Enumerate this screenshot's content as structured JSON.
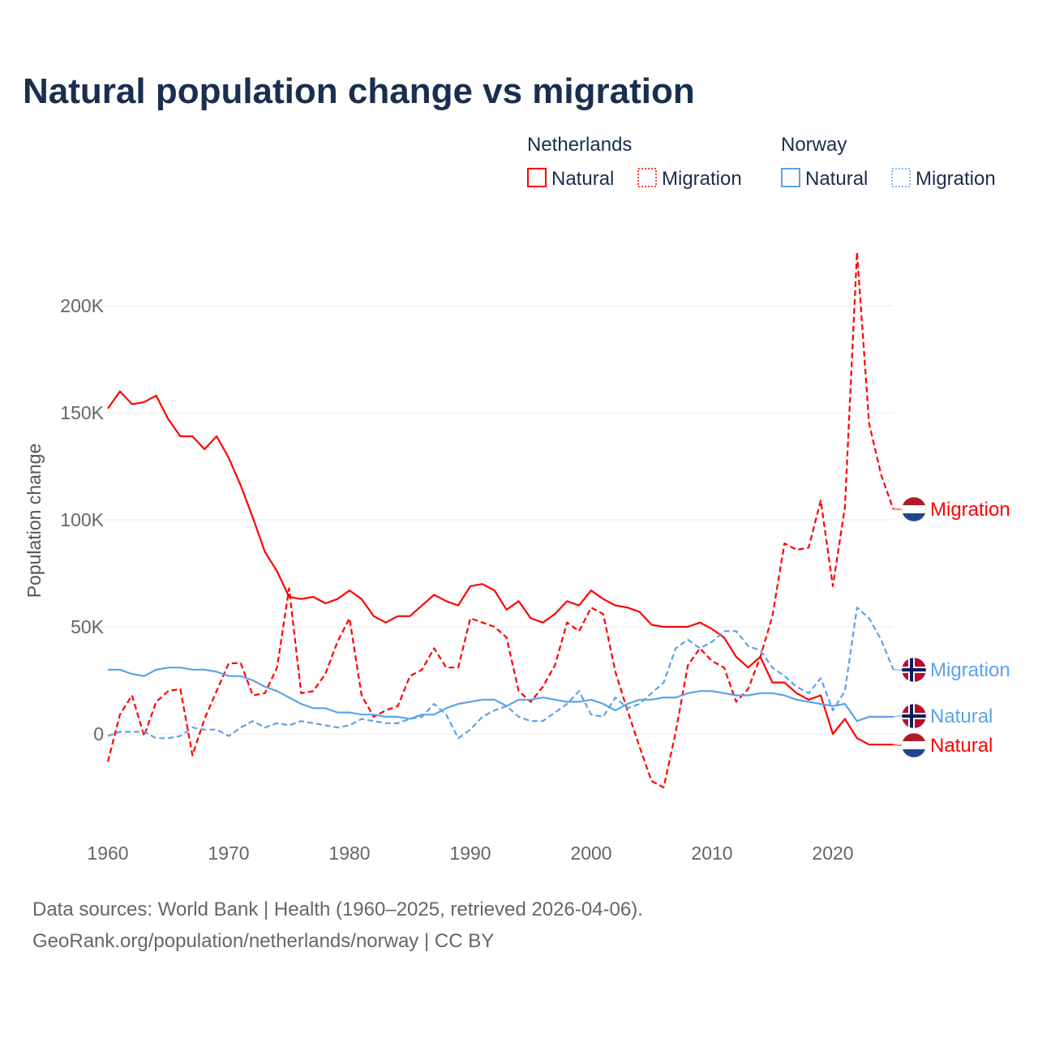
{
  "chart_data": {
    "type": "line",
    "title": "Natural population change vs migration",
    "ylabel": "Population change",
    "xlabel": "",
    "ylim": [
      -40000,
      230000
    ],
    "xlim": [
      1960,
      2025
    ],
    "grid": true,
    "y_ticks": [
      {
        "v": 0,
        "label": "0"
      },
      {
        "v": 50000,
        "label": "50K"
      },
      {
        "v": 100000,
        "label": "100K"
      },
      {
        "v": 150000,
        "label": "150K"
      },
      {
        "v": 200000,
        "label": "200K"
      }
    ],
    "x_ticks": [
      {
        "v": 1960,
        "label": "1960"
      },
      {
        "v": 1970,
        "label": "1970"
      },
      {
        "v": 1980,
        "label": "1980"
      },
      {
        "v": 1990,
        "label": "1990"
      },
      {
        "v": 2000,
        "label": "2000"
      },
      {
        "v": 2010,
        "label": "2010"
      },
      {
        "v": 2020,
        "label": "2020"
      }
    ],
    "x_start": 1960,
    "legend": {
      "placement": "top-right",
      "groups": [
        {
          "name": "Netherlands",
          "items": [
            "Natural",
            "Migration"
          ]
        },
        {
          "name": "Norway",
          "items": [
            "Natural",
            "Migration"
          ]
        }
      ]
    },
    "series": [
      {
        "name": "Netherlands Natural",
        "country": "Netherlands",
        "kind": "Natural",
        "color": "#ff0000",
        "dashed": false,
        "end_label": "Natural",
        "values": [
          152,
          160,
          154,
          155,
          158,
          147,
          139,
          139,
          133,
          139,
          129,
          116,
          101,
          85,
          76,
          64,
          63,
          64,
          61,
          63,
          67,
          63,
          55,
          52,
          55,
          55,
          60,
          65,
          62,
          60,
          69,
          70,
          67,
          58,
          62,
          54,
          52,
          56,
          62,
          60,
          67,
          63,
          60,
          59,
          57,
          51,
          50,
          50,
          50,
          52,
          49,
          45,
          36,
          31,
          36,
          24,
          24,
          19,
          16,
          18,
          0,
          7,
          -2,
          -5,
          -5,
          -5
        ]
      },
      {
        "name": "Netherlands Migration",
        "country": "Netherlands",
        "kind": "Migration",
        "color": "#ff0000",
        "dashed": true,
        "end_label": "Migration",
        "values": [
          -13,
          9,
          18,
          -1,
          15,
          20,
          21,
          -10,
          7,
          20,
          33,
          33,
          18,
          19,
          31,
          68,
          19,
          20,
          28,
          43,
          54,
          18,
          8,
          11,
          13,
          27,
          30,
          40,
          31,
          31,
          54,
          52,
          50,
          45,
          20,
          15,
          22,
          32,
          52,
          48,
          59,
          56,
          29,
          11,
          -6,
          -22,
          -25,
          1,
          32,
          40,
          34,
          31,
          15,
          21,
          36,
          55,
          89,
          86,
          87,
          109,
          69,
          106,
          225,
          145,
          121,
          105
        ]
      },
      {
        "name": "Norway Natural",
        "country": "Norway",
        "kind": "Natural",
        "color": "#5ba3e8",
        "dashed": false,
        "end_label": "Natural",
        "values": [
          30,
          30,
          28,
          27,
          30,
          31,
          31,
          30,
          30,
          29,
          27,
          27,
          25,
          22,
          20,
          17,
          14,
          12,
          12,
          10,
          10,
          9,
          9,
          8,
          8,
          7,
          9,
          9,
          12,
          14,
          15,
          16,
          16,
          13,
          16,
          16,
          17,
          16,
          15,
          15,
          16,
          14,
          11,
          14,
          16,
          16,
          17,
          17,
          19,
          20,
          20,
          19,
          18,
          18,
          19,
          19,
          18,
          16,
          15,
          14,
          13,
          14,
          6,
          8,
          8,
          8
        ]
      },
      {
        "name": "Norway Migration",
        "country": "Norway",
        "kind": "Migration",
        "color": "#5ba3e8",
        "dashed": true,
        "end_label": "Migration",
        "values": [
          -1,
          1,
          1,
          1,
          -2,
          -2,
          -1,
          3,
          2,
          2,
          -1,
          3,
          6,
          3,
          5,
          4,
          6,
          5,
          4,
          3,
          4,
          7,
          6,
          5,
          5,
          7,
          8,
          14,
          9,
          -2,
          2,
          8,
          11,
          13,
          8,
          6,
          6,
          10,
          14,
          20,
          9,
          8,
          17,
          12,
          14,
          19,
          24,
          40,
          44,
          40,
          43,
          48,
          48,
          41,
          39,
          31,
          27,
          22,
          19,
          26,
          11,
          20,
          59,
          54,
          44,
          30
        ]
      }
    ],
    "value_unit": "thousands"
  },
  "footer": {
    "line1": "Data sources: World Bank | Health (1960–2025, retrieved 2026-04-06).",
    "line2": "GeoRank.org/population/netherlands/norway | CC BY"
  }
}
